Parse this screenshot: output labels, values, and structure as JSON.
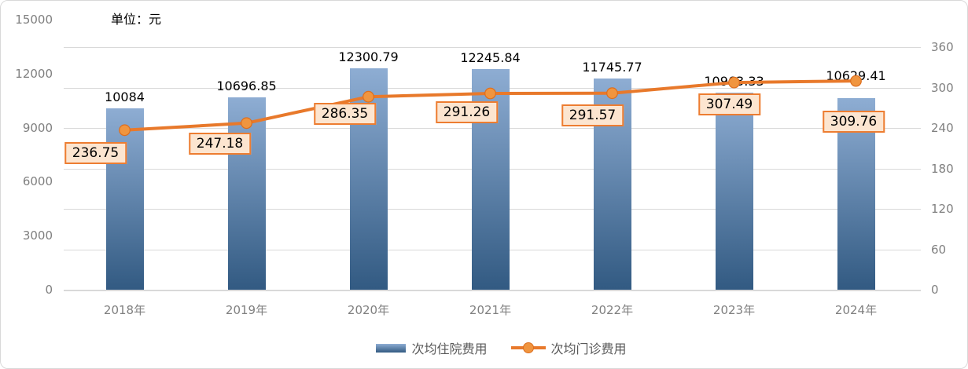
{
  "title_note": "单位：元",
  "colors": {
    "bar_top": "#8EADD3",
    "bar_bottom": "#325A82",
    "line": "#E8792B",
    "marker_fill": "#F0953F",
    "marker_stroke": "#DD6E1E",
    "label_box_bg": "#FCE5D0",
    "label_box_border": "#ED7D31",
    "grid": "#D9D9D9",
    "axis_text": "#808080",
    "legend_text": "#595959",
    "data_label_text": "#000000"
  },
  "chart_data": {
    "type": "bar+line",
    "title": "",
    "unit_note": "单位：元",
    "categories": [
      "2018年",
      "2019年",
      "2020年",
      "2021年",
      "2022年",
      "2023年",
      "2024年"
    ],
    "series": [
      {
        "name": "次均住院费用",
        "type": "bar",
        "axis": "left",
        "values": [
          10084,
          10696.85,
          12300.79,
          12245.84,
          11745.77,
          10963.33,
          10629.41
        ],
        "labels": [
          "10084",
          "10696.85",
          "12300.79",
          "12245.84",
          "11745.77",
          "10963.33",
          "10629.41"
        ]
      },
      {
        "name": "次均门诊费用",
        "type": "line",
        "axis": "right",
        "values": [
          236.75,
          247.18,
          286.35,
          291.26,
          291.57,
          307.49,
          309.76
        ],
        "labels": [
          "236.75",
          "247.18",
          "286.35",
          "291.26",
          "291.57",
          "307.49",
          "309.76"
        ]
      }
    ],
    "left_axis": {
      "min": 0,
      "max": 15000,
      "step": 3000,
      "ticks": [
        "0",
        "3000",
        "6000",
        "9000",
        "12000",
        "15000"
      ]
    },
    "right_axis": {
      "min": 0,
      "max": 360,
      "step": 60,
      "ticks": [
        "0",
        "60",
        "120",
        "180",
        "240",
        "300",
        "360"
      ]
    },
    "legend_position": "bottom",
    "grid": true
  }
}
